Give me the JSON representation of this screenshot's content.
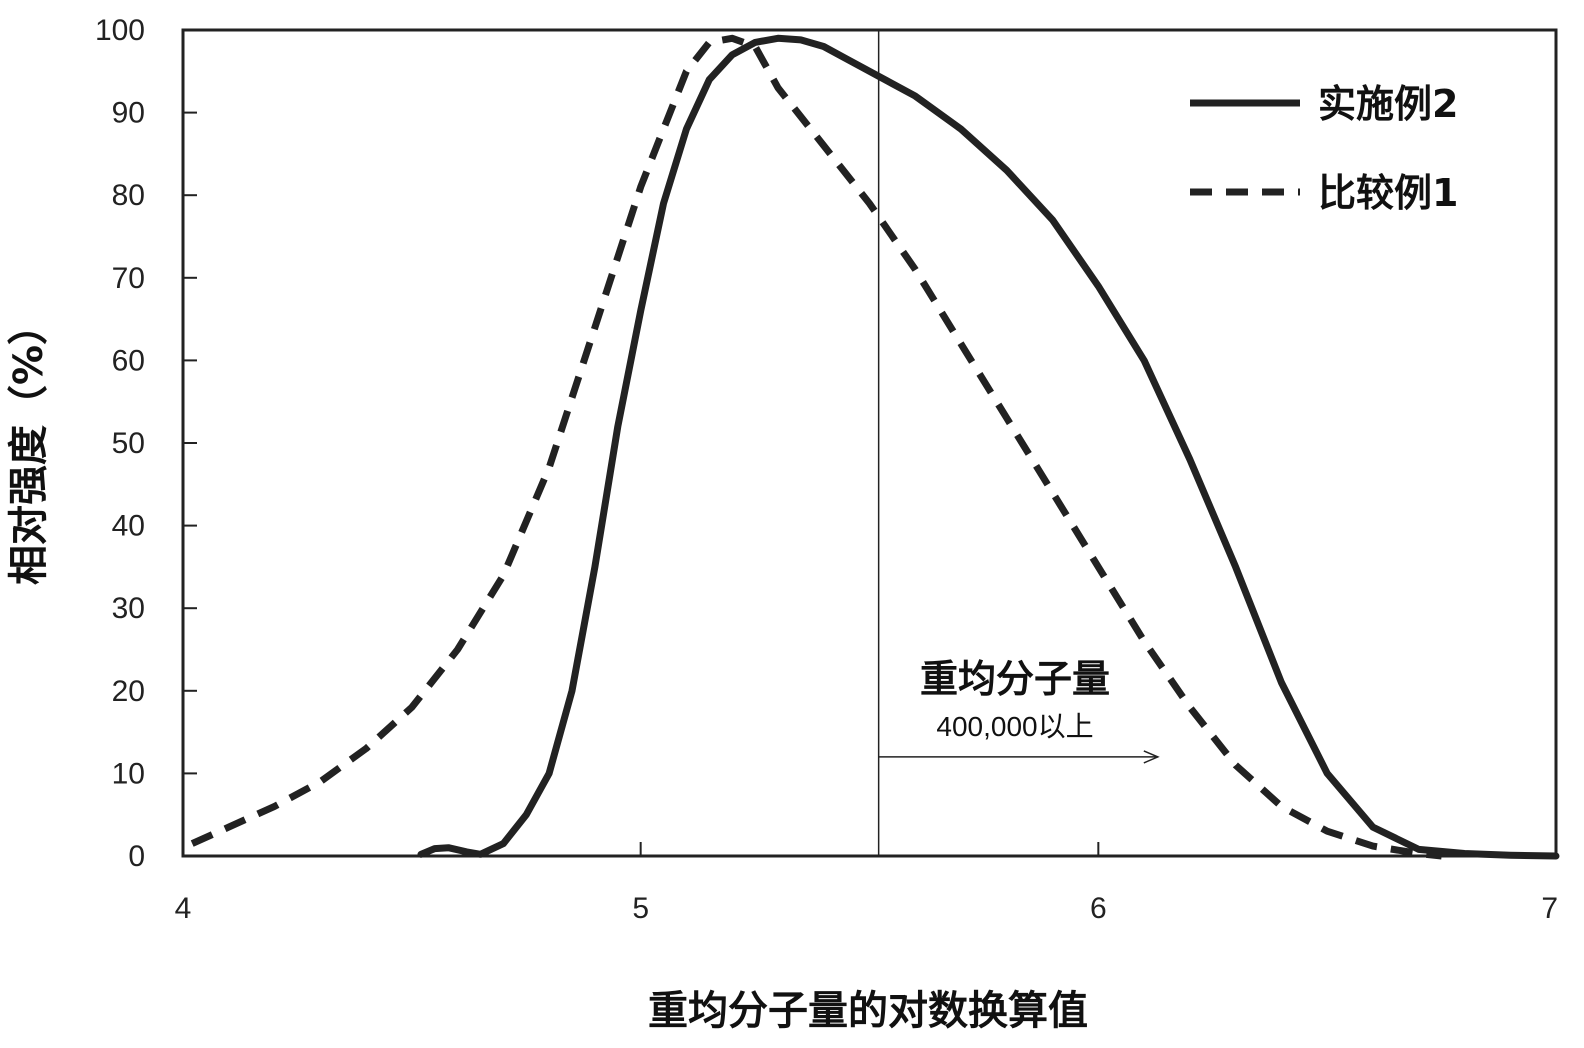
{
  "chart_data": {
    "type": "line",
    "xlabel": "重均分子量的对数换算值",
    "ylabel": "相对强度（%）",
    "xlim": [
      4,
      7
    ],
    "ylim": [
      0,
      100
    ],
    "xticks": [
      "4",
      "5",
      "6",
      "7"
    ],
    "yticks": [
      "0",
      "10",
      "20",
      "30",
      "40",
      "50",
      "60",
      "70",
      "80",
      "90",
      "100"
    ],
    "grid": false,
    "legend_position": "top-right",
    "series": [
      {
        "name": "实施例2",
        "style": "solid",
        "color": "#222222",
        "points": [
          [
            4.52,
            0.2
          ],
          [
            4.55,
            0.9
          ],
          [
            4.58,
            1.0
          ],
          [
            4.62,
            0.5
          ],
          [
            4.65,
            0.2
          ],
          [
            4.7,
            1.5
          ],
          [
            4.75,
            5
          ],
          [
            4.8,
            10
          ],
          [
            4.85,
            20
          ],
          [
            4.9,
            35
          ],
          [
            4.95,
            52
          ],
          [
            5.0,
            66
          ],
          [
            5.05,
            79
          ],
          [
            5.1,
            88
          ],
          [
            5.15,
            94
          ],
          [
            5.2,
            97
          ],
          [
            5.25,
            98.5
          ],
          [
            5.3,
            99
          ],
          [
            5.35,
            98.8
          ],
          [
            5.4,
            98
          ],
          [
            5.45,
            96.5
          ],
          [
            5.5,
            95
          ],
          [
            5.6,
            92
          ],
          [
            5.7,
            88
          ],
          [
            5.8,
            83
          ],
          [
            5.9,
            77
          ],
          [
            6.0,
            69
          ],
          [
            6.1,
            60
          ],
          [
            6.2,
            48
          ],
          [
            6.3,
            35
          ],
          [
            6.4,
            21
          ],
          [
            6.5,
            10
          ],
          [
            6.6,
            3.5
          ],
          [
            6.7,
            0.8
          ],
          [
            6.8,
            0.3
          ],
          [
            6.9,
            0.1
          ],
          [
            7.0,
            0
          ]
        ]
      },
      {
        "name": "比较例1",
        "style": "dashed",
        "color": "#222222",
        "points": [
          [
            4.02,
            1.5
          ],
          [
            4.1,
            3.5
          ],
          [
            4.2,
            6
          ],
          [
            4.3,
            9
          ],
          [
            4.4,
            13
          ],
          [
            4.5,
            18
          ],
          [
            4.6,
            25
          ],
          [
            4.7,
            34
          ],
          [
            4.8,
            47
          ],
          [
            4.9,
            64
          ],
          [
            5.0,
            81
          ],
          [
            5.05,
            88
          ],
          [
            5.1,
            95
          ],
          [
            5.15,
            98.5
          ],
          [
            5.2,
            99
          ],
          [
            5.25,
            98
          ],
          [
            5.3,
            93
          ],
          [
            5.4,
            86
          ],
          [
            5.5,
            79
          ],
          [
            5.6,
            71
          ],
          [
            5.7,
            62
          ],
          [
            5.8,
            53
          ],
          [
            5.9,
            44
          ],
          [
            6.0,
            35
          ],
          [
            6.1,
            26
          ],
          [
            6.2,
            18
          ],
          [
            6.3,
            11
          ],
          [
            6.4,
            6
          ],
          [
            6.5,
            3
          ],
          [
            6.6,
            1.2
          ],
          [
            6.7,
            0.3
          ],
          [
            6.75,
            0
          ]
        ]
      }
    ],
    "annotation": {
      "title": "重均分子量",
      "subtitle": "400,000以上",
      "vline_x": 5.52,
      "arrow_from_x": 5.52,
      "arrow_to_x": 6.13,
      "arrow_y": 12
    }
  }
}
